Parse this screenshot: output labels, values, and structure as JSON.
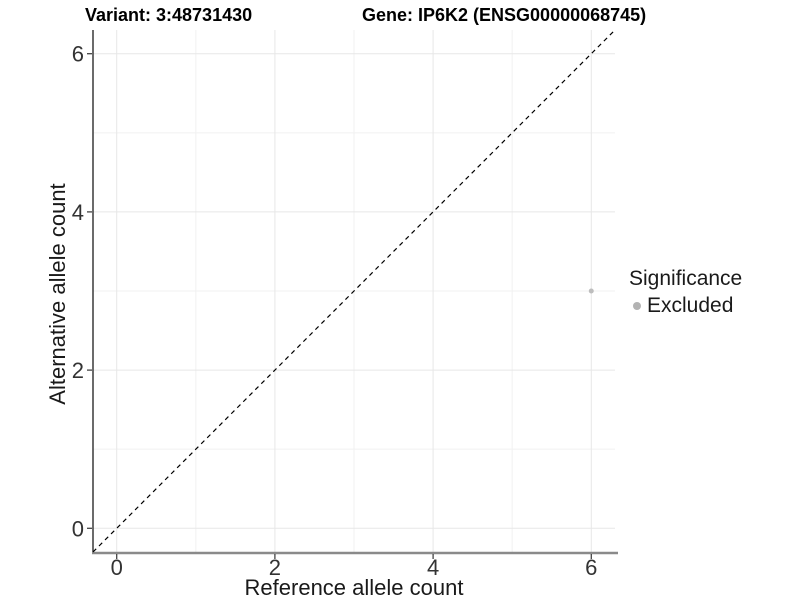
{
  "chart_data": {
    "type": "scatter",
    "title_left": "Variant: 3:48731430",
    "title_right": "Gene: IP6K2 (ENSG00000068745)",
    "xlabel": "Reference allele count",
    "ylabel": "Alternative allele count",
    "xlim": [
      -0.3,
      6.3
    ],
    "ylim": [
      -0.3,
      6.3
    ],
    "x_ticks": [
      0,
      2,
      4,
      6
    ],
    "y_ticks": [
      0,
      2,
      4,
      6
    ],
    "x_minor_ticks": [
      1,
      3,
      5
    ],
    "y_minor_ticks": [
      1,
      3,
      5
    ],
    "grid": "major+minor",
    "series": [
      {
        "name": "Excluded",
        "color": "#bdbdbd",
        "point_radius": 2.5,
        "points": [
          [
            6,
            3
          ]
        ]
      }
    ],
    "reference_line": {
      "slope": 1,
      "intercept": 0,
      "style": "dashed",
      "color": "#000000"
    },
    "legend": {
      "title": "Significance",
      "position": "right",
      "items": [
        {
          "label": "Excluded",
          "color": "#b3b3b3",
          "marker": "circle"
        }
      ]
    }
  }
}
